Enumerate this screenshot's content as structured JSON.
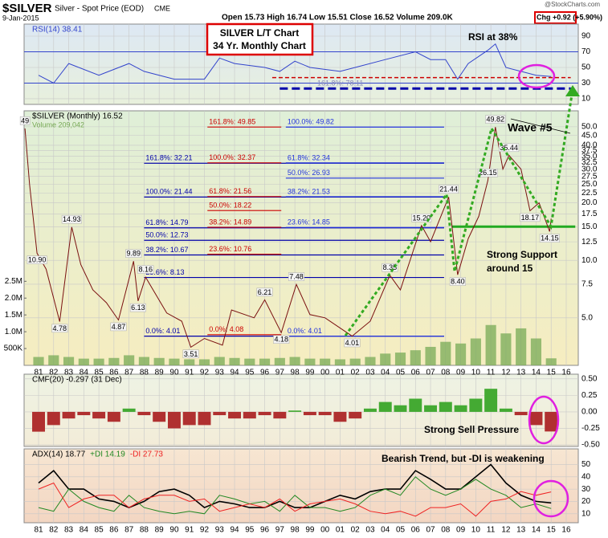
{
  "header": {
    "symbol": "$SILVER",
    "name": "Silver - Spot Price (EOD)",
    "exchange": "CME",
    "date": "9-Jan-2015",
    "quote": "Open 15.73 High 16.74 Low 15.51 Close 16.52 Volume 209.0K",
    "change": "Chg +0.92 (+5.90%)",
    "watermark": "@StockCharts.com",
    "box": [
      "SILVER L/T Chart",
      "34 Yr. Monthly Chart"
    ]
  },
  "chart_data": [
    {
      "type": "line",
      "xlim": [
        1980.04,
        2016.8
      ],
      "ylim": [
        2.8,
        105.4
      ],
      "yticks": [
        90,
        70,
        50,
        30,
        10
      ],
      "overbought": 70,
      "oversold": 30,
      "x": [
        1981,
        1982,
        1983,
        1985,
        1987,
        1988,
        1990,
        1992,
        1993,
        1994,
        1996,
        1997,
        1998,
        1999,
        2001,
        2002,
        2004,
        2006,
        2007,
        2008,
        2008.8,
        2009.5,
        2010.8,
        2011.3,
        2012,
        2013,
        2014,
        2015
      ],
      "series": [
        {
          "name": "RSI(14) 38.41",
          "color": "#3344cc",
          "values": [
            40,
            30,
            55,
            40,
            55,
            45,
            35,
            35,
            62,
            55,
            50,
            45,
            58,
            50,
            45,
            50,
            60,
            70,
            60,
            60,
            35,
            55,
            72,
            80,
            50,
            45,
            40,
            38.41
          ]
        }
      ],
      "trendlines": [
        {
          "value": 37,
          "x": [
            1996.5,
            2016.3
          ],
          "color": "#cc0000"
        },
        {
          "value": 23,
          "x": [
            1997.0,
            2016.3
          ],
          "color": "#0000aa"
        }
      ],
      "notes": [
        "RSI at 38%",
        "161.8%: 78.11"
      ]
    },
    {
      "type": "line",
      "log": true,
      "xlim": [
        1980.04,
        2016.8
      ],
      "ylim": [
        2.82,
        60.6
      ],
      "yticks": [
        {
          "value": 50,
          "label": "50.0"
        },
        {
          "value": 45,
          "label": "45.0"
        },
        {
          "value": 40,
          "label": "40.0"
        },
        37.5,
        {
          "value": 35,
          "label": "35.0"
        },
        32.5,
        {
          "value": 30,
          "label": "30.0"
        },
        27.5,
        {
          "value": 25,
          "label": "25.0"
        },
        22.5,
        {
          "value": 20,
          "label": "20.0"
        },
        17.5,
        {
          "value": 15,
          "label": "15.0"
        },
        12.5,
        {
          "value": 10,
          "label": "10.0"
        },
        7.5,
        {
          "value": 5,
          "label": "5.0"
        }
      ],
      "xticks": [
        {
          "value": 1981,
          "label": "81"
        },
        {
          "value": 1982,
          "label": "82"
        },
        {
          "value": 1983,
          "label": "83"
        },
        {
          "value": 1984,
          "label": "84"
        },
        {
          "value": 1985,
          "label": "85"
        },
        {
          "value": 1986,
          "label": "86"
        },
        {
          "value": 1987,
          "label": "87"
        },
        {
          "value": 1988,
          "label": "88"
        },
        {
          "value": 1989,
          "label": "89"
        },
        {
          "value": 1990,
          "label": "90"
        },
        {
          "value": 1991,
          "label": "91"
        },
        {
          "value": 1992,
          "label": "92"
        },
        {
          "value": 1993,
          "label": "93"
        },
        {
          "value": 1994,
          "label": "94"
        },
        {
          "value": 1995,
          "label": "95"
        },
        {
          "value": 1996,
          "label": "96"
        },
        {
          "value": 1997,
          "label": "97"
        },
        {
          "value": 1998,
          "label": "98"
        },
        {
          "value": 1999,
          "label": "99"
        },
        {
          "value": 2000,
          "label": "00"
        },
        {
          "value": 2001,
          "label": "01"
        },
        {
          "value": 2002,
          "label": "02"
        },
        {
          "value": 2003,
          "label": "03"
        },
        {
          "value": 2004,
          "label": "04"
        },
        {
          "value": 2005,
          "label": "05"
        },
        {
          "value": 2006,
          "label": "06"
        },
        {
          "value": 2007,
          "label": "07"
        },
        {
          "value": 2008,
          "label": "08"
        },
        {
          "value": 2009,
          "label": "09"
        },
        {
          "value": 2010,
          "label": "10"
        },
        {
          "value": 2011,
          "label": "11"
        },
        {
          "value": 2012,
          "label": "12"
        },
        {
          "value": 2013,
          "label": "13"
        },
        {
          "value": 2014,
          "label": "14"
        },
        {
          "value": 2015,
          "label": "15"
        },
        {
          "value": 2016,
          "label": "16"
        }
      ],
      "x": [
        1980.1,
        1980.4,
        1980.9,
        1981.5,
        1982.4,
        1983.2,
        1983.8,
        1984.6,
        1985.5,
        1986.3,
        1987.3,
        1987.6,
        1988.1,
        1989.5,
        1990.5,
        1991.1,
        1992,
        1993.2,
        1993.8,
        1995.3,
        1996.0,
        1997.1,
        1998.1,
        1999,
        2000,
        2001.8,
        2003,
        2004.3,
        2005,
        2006.4,
        2007,
        2008.2,
        2008.8,
        2009.5,
        2010.2,
        2010.8,
        2011.3,
        2011.8,
        2012.2,
        2013,
        2013.6,
        2014.2,
        2014.9,
        2015
      ],
      "series": [
        {
          "name": "$SILVER (Monthly) 16.52",
          "color": "#7a1010",
          "values": [
            49,
            25,
            10.9,
            9,
            4.78,
            14.93,
            9.5,
            7,
            6,
            4.87,
            9.89,
            6.13,
            8.16,
            5.3,
            4.8,
            3.51,
            3.9,
            3.6,
            5.5,
            5.0,
            6.21,
            4.18,
            7.48,
            5.2,
            5.0,
            4.01,
            4.8,
            8.35,
            7,
            15.2,
            12.5,
            21.44,
            8.4,
            13,
            17,
            26.15,
            49.82,
            30,
            35.44,
            30,
            18.17,
            20,
            14.15,
            16.52
          ],
          "value_labels": [
            "49",
            null,
            "10.90",
            null,
            "4.78",
            "14.93",
            null,
            null,
            null,
            "4.87",
            "9.89",
            "6.13",
            "8.16",
            null,
            null,
            "3.51",
            null,
            null,
            null,
            null,
            "6.21",
            "4.18",
            "7.48",
            null,
            null,
            "4.01",
            null,
            "8.35",
            null,
            "15.20",
            null,
            "21.44",
            "8.40",
            null,
            null,
            "26.15",
            "49.82",
            null,
            "35.44",
            null,
            "18.17",
            null,
            "14.15",
            null
          ]
        }
      ],
      "volume": {
        "name": "Volume 209,042",
        "color": "#77aa55",
        "axis": "y2",
        "x": [
          1981,
          1982,
          1983,
          1984,
          1985,
          1986,
          1987,
          1988,
          1989,
          1990,
          1991,
          1992,
          1993,
          1994,
          1995,
          1996,
          1997,
          1998,
          1999,
          2000,
          2001,
          2002,
          2003,
          2004,
          2005,
          2006,
          2007,
          2008,
          2009,
          2010,
          2011,
          2012,
          2013,
          2014,
          2015
        ],
        "values": [
          250000,
          300000,
          250000,
          200000,
          200000,
          220000,
          300000,
          250000,
          220000,
          200000,
          180000,
          180000,
          250000,
          220000,
          200000,
          200000,
          220000,
          250000,
          200000,
          200000,
          180000,
          200000,
          250000,
          350000,
          380000,
          450000,
          550000,
          700000,
          650000,
          800000,
          1200000,
          950000,
          1100000,
          800000,
          209042
        ]
      },
      "y2lim": [
        0,
        7570000
      ],
      "y2ticks": [
        {
          "value": 2500000,
          "label": "2.5M"
        },
        {
          "value": 2000000,
          "label": "2.0M"
        },
        {
          "value": 1500000,
          "label": "1.5M"
        },
        {
          "value": 1000000,
          "label": "1.0M"
        },
        {
          "value": 500000,
          "label": "500K"
        }
      ],
      "support": 15,
      "fib_levels": [
        {
          "color": "#0000aa",
          "x": [
            1988.0,
            2007.9
          ],
          "levels": [
            {
              "label": "161.8%: 32.21",
              "value": 32.21
            },
            {
              "label": "100.0%: 21.44",
              "value": 21.44
            },
            {
              "label": "61.8%: 14.79",
              "value": 14.79
            },
            {
              "label": "50.0%: 12.73",
              "value": 12.73
            },
            {
              "label": "38.2%: 10.67",
              "value": 10.67
            },
            {
              "label": "23.6%: 8.13",
              "value": 8.13
            },
            {
              "label": "0.0%: 4.01",
              "value": 4.01
            }
          ]
        },
        {
          "color": "#cc0000",
          "x": [
            1992.2,
            1997.1
          ],
          "levels": [
            {
              "label": "161.8%: 49.85",
              "value": 49.85
            },
            {
              "label": "100.0%: 32.37",
              "value": 32.37
            },
            {
              "label": "61.8%: 21.56",
              "value": 21.56
            },
            {
              "label": "50.0%: 18.22",
              "value": 18.22
            },
            {
              "label": "38.2%: 14.89",
              "value": 14.89
            },
            {
              "label": "23.6%: 10.76",
              "value": 10.76
            },
            {
              "label": "0.0%: 4.08",
              "value": 4.08
            }
          ]
        },
        {
          "color": "#2233dd",
          "x": [
            1997.4,
            2007.9
          ],
          "levels": [
            {
              "label": "100.0%: 49.82",
              "value": 49.82
            },
            {
              "label": "61.8%: 32.34",
              "value": 32.34
            },
            {
              "label": "50.0%: 26.93",
              "value": 26.93
            },
            {
              "label": "38.2%: 21.53",
              "value": 21.53
            },
            {
              "label": "23.6%: 14.85",
              "value": 14.85
            },
            {
              "label": "0.0%: 4.01",
              "value": 4.01
            }
          ]
        }
      ],
      "notes": [
        "Wave #5",
        "Strong Support",
        "around 15"
      ]
    },
    {
      "type": "bar",
      "xlim": [
        1980.04,
        2016.8
      ],
      "ylim": [
        -0.524,
        0.571
      ],
      "yticks": [
        {
          "value": 0.5,
          "label": "0.50"
        },
        {
          "value": 0.25,
          "label": "0.25"
        },
        {
          "value": 0,
          "label": "0.00"
        },
        {
          "value": -0.25,
          "label": "-0.25"
        },
        {
          "value": -0.5,
          "label": "-0.50"
        }
      ],
      "x": [
        1981,
        1982,
        1983,
        1984,
        1985,
        1986,
        1987,
        1988,
        1989,
        1990,
        1991,
        1992,
        1993,
        1994,
        1995,
        1996,
        1997,
        1998,
        1999,
        2000,
        2001,
        2002,
        2003,
        2004,
        2005,
        2006,
        2007,
        2008,
        2009,
        2010,
        2011,
        2012,
        2013,
        2014,
        2015
      ],
      "series": [
        {
          "name": "CMF(20) -0.297 (31 Dec)",
          "colors": {
            "positive": "#44aa33",
            "negative": "#b03030"
          },
          "values": [
            -0.3,
            -0.2,
            -0.1,
            -0.05,
            -0.1,
            -0.15,
            0.05,
            -0.05,
            -0.15,
            -0.25,
            -0.2,
            -0.2,
            -0.05,
            -0.1,
            -0.1,
            -0.05,
            -0.1,
            0.02,
            -0.05,
            -0.05,
            -0.15,
            -0.1,
            0.05,
            0.15,
            0.1,
            0.2,
            0.1,
            0.15,
            0.1,
            0.2,
            0.35,
            0.05,
            -0.05,
            -0.2,
            -0.297
          ]
        }
      ],
      "notes": [
        "Strong Sell Pressure"
      ]
    },
    {
      "type": "line",
      "xlim": [
        1980.04,
        2016.8
      ],
      "ylim": [
        2.67,
        62.7
      ],
      "yticks": [
        50,
        40,
        30,
        20,
        10
      ],
      "xticks": [
        {
          "value": 1981,
          "label": "81"
        },
        {
          "value": 1982,
          "label": "82"
        },
        {
          "value": 1983,
          "label": "83"
        },
        {
          "value": 1984,
          "label": "84"
        },
        {
          "value": 1985,
          "label": "85"
        },
        {
          "value": 1986,
          "label": "86"
        },
        {
          "value": 1987,
          "label": "87"
        },
        {
          "value": 1988,
          "label": "88"
        },
        {
          "value": 1989,
          "label": "89"
        },
        {
          "value": 1990,
          "label": "90"
        },
        {
          "value": 1991,
          "label": "91"
        },
        {
          "value": 1992,
          "label": "92"
        },
        {
          "value": 1993,
          "label": "93"
        },
        {
          "value": 1994,
          "label": "94"
        },
        {
          "value": 1995,
          "label": "95"
        },
        {
          "value": 1996,
          "label": "96"
        },
        {
          "value": 1997,
          "label": "97"
        },
        {
          "value": 1998,
          "label": "98"
        },
        {
          "value": 1999,
          "label": "99"
        },
        {
          "value": 2000,
          "label": "00"
        },
        {
          "value": 2001,
          "label": "01"
        },
        {
          "value": 2002,
          "label": "02"
        },
        {
          "value": 2003,
          "label": "03"
        },
        {
          "value": 2004,
          "label": "04"
        },
        {
          "value": 2005,
          "label": "05"
        },
        {
          "value": 2006,
          "label": "06"
        },
        {
          "value": 2007,
          "label": "07"
        },
        {
          "value": 2008,
          "label": "08"
        },
        {
          "value": 2009,
          "label": "09"
        },
        {
          "value": 2010,
          "label": "10"
        },
        {
          "value": 2011,
          "label": "11"
        },
        {
          "value": 2012,
          "label": "12"
        },
        {
          "value": 2013,
          "label": "13"
        },
        {
          "value": 2014,
          "label": "14"
        },
        {
          "value": 2015,
          "label": "15"
        },
        {
          "value": 2016,
          "label": "16"
        }
      ],
      "x": [
        1981,
        1982,
        1983,
        1984,
        1985,
        1986,
        1987,
        1988,
        1989,
        1990,
        1991,
        1992,
        1993,
        1994,
        1995,
        1996,
        1997,
        1998,
        1999,
        2000,
        2001,
        2002,
        2003,
        2004,
        2005,
        2006,
        2007,
        2008,
        2009,
        2010,
        2011,
        2012,
        2013,
        2014,
        2015
      ],
      "series": [
        {
          "name": "ADX(14) 18.77",
          "color": "#000000",
          "values": [
            35,
            45,
            30,
            30,
            22,
            20,
            15,
            20,
            28,
            30,
            25,
            15,
            20,
            18,
            15,
            15,
            20,
            15,
            15,
            20,
            25,
            22,
            28,
            30,
            30,
            45,
            38,
            30,
            30,
            40,
            50,
            35,
            25,
            20,
            18.77
          ]
        },
        {
          "name": "+DI 14.19",
          "color": "#228822",
          "values": [
            15,
            12,
            30,
            20,
            15,
            12,
            25,
            15,
            12,
            10,
            12,
            10,
            25,
            22,
            18,
            20,
            12,
            25,
            15,
            15,
            12,
            15,
            25,
            30,
            25,
            40,
            30,
            25,
            30,
            38,
            30,
            25,
            15,
            18,
            14.19
          ]
        },
        {
          "name": "-DI 27.73",
          "color": "#ee2222",
          "values": [
            30,
            35,
            15,
            22,
            25,
            25,
            15,
            22,
            25,
            25,
            20,
            22,
            12,
            15,
            18,
            15,
            22,
            12,
            18,
            20,
            22,
            18,
            12,
            10,
            12,
            8,
            15,
            15,
            18,
            8,
            20,
            22,
            28,
            25,
            27.73
          ]
        }
      ],
      "notes": [
        "Bearish Trend, but -DI is weakening"
      ]
    }
  ]
}
